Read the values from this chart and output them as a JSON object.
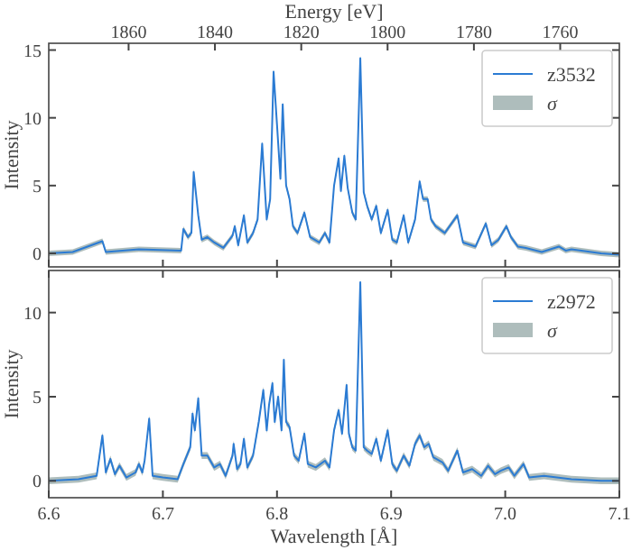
{
  "chart_data": [
    {
      "type": "line",
      "x2label": "Energy [eV]",
      "ylabel": "Intensity",
      "xlim": [
        6.6,
        7.1
      ],
      "xticks": [
        6.6,
        6.7,
        6.8,
        6.9,
        7.0,
        7.1
      ],
      "x2lim": [
        1878.5,
        1746.3
      ],
      "x2ticks": [
        1860,
        1840,
        1820,
        1800,
        1780,
        1760
      ],
      "ylim": [
        -1,
        15.5
      ],
      "yticks": [
        0,
        5,
        10,
        15
      ],
      "tick_labels": "y",
      "legend": "top right",
      "x": [
        6.6,
        6.621,
        6.647,
        6.65,
        6.679,
        6.716,
        6.718,
        6.722,
        6.725,
        6.727,
        6.731,
        6.734,
        6.739,
        6.745,
        6.753,
        6.761,
        6.763,
        6.766,
        6.771,
        6.774,
        6.779,
        6.783,
        6.787,
        6.791,
        6.794,
        6.797,
        6.8,
        6.803,
        6.805,
        6.808,
        6.811,
        6.814,
        6.818,
        6.824,
        6.829,
        6.837,
        6.842,
        6.846,
        6.85,
        6.854,
        6.856,
        6.859,
        6.862,
        6.866,
        6.869,
        6.873,
        6.876,
        6.879,
        6.883,
        6.887,
        6.891,
        6.897,
        6.901,
        6.905,
        6.911,
        6.915,
        6.921,
        6.925,
        6.928,
        6.932,
        6.935,
        6.939,
        6.947,
        6.958,
        6.963,
        6.974,
        6.983,
        6.988,
        6.994,
        7.001,
        7.005,
        7.011,
        7.018,
        7.032,
        7.047,
        7.053,
        7.058,
        7.084,
        7.1
      ],
      "series": [
        {
          "name": "z3532",
          "color": "#2b7bd3",
          "values": [
            0,
            0.1,
            0.9,
            0.1,
            0.3,
            0.2,
            1.8,
            1.2,
            1.5,
            6.0,
            2.8,
            1.0,
            1.2,
            0.8,
            0.4,
            1.3,
            2.0,
            0.6,
            2.8,
            0.8,
            1.5,
            2.5,
            8.1,
            2.5,
            4.0,
            13.4,
            9.5,
            5.5,
            11.0,
            5.0,
            4.0,
            2.0,
            1.5,
            3.0,
            1.2,
            0.8,
            1.5,
            0.8,
            5.0,
            7.0,
            4.6,
            7.2,
            4.8,
            3.0,
            2.5,
            14.4,
            4.5,
            3.5,
            2.5,
            3.5,
            1.5,
            3.2,
            1.0,
            0.8,
            2.8,
            0.8,
            2.5,
            5.3,
            4.0,
            4.0,
            2.5,
            2.0,
            1.5,
            2.8,
            0.8,
            0.5,
            2.2,
            0.6,
            1.0,
            2.0,
            1.2,
            0.5,
            0.4,
            0.1,
            0.5,
            0.2,
            0.3,
            0.0,
            -0.1
          ],
          "lower": [
            -0.2,
            -0.1,
            0.7,
            -0.1,
            0.1,
            0.0,
            1.6,
            1.0,
            1.3,
            5.8,
            2.6,
            0.8,
            1.0,
            0.6,
            0.2,
            1.1,
            1.8,
            0.4,
            2.6,
            0.6,
            1.3,
            2.3,
            7.9,
            2.3,
            3.8,
            13.2,
            9.3,
            5.3,
            10.8,
            4.8,
            3.8,
            1.8,
            1.3,
            2.8,
            1.0,
            0.6,
            1.3,
            0.6,
            4.8,
            6.8,
            4.4,
            7.0,
            4.6,
            2.8,
            2.3,
            14.2,
            4.3,
            3.3,
            2.3,
            3.3,
            1.3,
            3.0,
            0.8,
            0.6,
            2.6,
            0.6,
            2.3,
            5.1,
            3.8,
            3.8,
            2.3,
            1.8,
            1.3,
            2.6,
            0.6,
            0.3,
            2.0,
            0.4,
            0.8,
            1.8,
            1.0,
            0.3,
            0.2,
            -0.1,
            0.3,
            0.0,
            0.1,
            -0.2,
            -0.3
          ],
          "upper": [
            0.2,
            0.3,
            1.1,
            0.3,
            0.5,
            0.4,
            2.0,
            1.4,
            1.7,
            6.2,
            3.0,
            1.2,
            1.4,
            1.0,
            0.6,
            1.5,
            2.2,
            0.8,
            3.0,
            1.0,
            1.7,
            2.7,
            8.3,
            2.7,
            4.2,
            13.6,
            9.7,
            5.7,
            11.2,
            5.2,
            4.2,
            2.2,
            1.7,
            3.2,
            1.4,
            1.0,
            1.7,
            1.0,
            5.2,
            7.2,
            4.8,
            7.4,
            5.0,
            3.2,
            2.7,
            14.6,
            4.7,
            3.7,
            2.7,
            3.7,
            1.7,
            3.4,
            1.2,
            1.0,
            3.0,
            1.0,
            2.7,
            5.5,
            4.2,
            4.2,
            2.7,
            2.2,
            1.7,
            3.0,
            1.0,
            0.7,
            2.4,
            0.8,
            1.2,
            2.2,
            1.4,
            0.7,
            0.6,
            0.3,
            0.7,
            0.4,
            0.5,
            0.2,
            0.1
          ]
        },
        {
          "name": "σ",
          "type": "area",
          "color": "#9aadab",
          "values": [
            null,
            null,
            null,
            null,
            null,
            null,
            null,
            null,
            null,
            null,
            null,
            null,
            null,
            null,
            null,
            null,
            null,
            null,
            null,
            null,
            null,
            null,
            null,
            null,
            null,
            null,
            null,
            null,
            null,
            null,
            null,
            null,
            null,
            null,
            null,
            null,
            null,
            null,
            null,
            null,
            null,
            null,
            null,
            null,
            null,
            null,
            null,
            null,
            null,
            null,
            null,
            null,
            null,
            null,
            null,
            null,
            null,
            null,
            null,
            null,
            null,
            null,
            null,
            null,
            null,
            null,
            null,
            null,
            null,
            null,
            null,
            null,
            null,
            null,
            null,
            null,
            null,
            null,
            null
          ]
        }
      ]
    },
    {
      "type": "line",
      "xlabel": "Wavelength [Å]",
      "ylabel": "Intensity",
      "xlim": [
        6.6,
        7.1
      ],
      "xticks": [
        6.6,
        6.7,
        6.8,
        6.9,
        {
          "value": 7.0,
          "label": "7.0"
        },
        7.1
      ],
      "ylim": [
        -1,
        12.5
      ],
      "yticks": [
        0,
        5,
        10
      ],
      "legend": "top right",
      "x": [
        6.6,
        6.626,
        6.642,
        6.647,
        6.65,
        6.654,
        6.658,
        6.662,
        6.668,
        6.676,
        6.679,
        6.682,
        6.684,
        6.688,
        6.691,
        6.7,
        6.713,
        6.718,
        6.724,
        6.726,
        6.728,
        6.731,
        6.734,
        6.739,
        6.745,
        6.75,
        6.755,
        6.761,
        6.762,
        6.765,
        6.768,
        6.771,
        6.774,
        6.779,
        6.784,
        6.788,
        6.791,
        6.793,
        6.796,
        6.798,
        6.801,
        6.804,
        6.806,
        6.808,
        6.811,
        6.815,
        6.819,
        6.824,
        6.827,
        6.834,
        6.842,
        6.846,
        6.85,
        6.854,
        6.857,
        6.861,
        6.863,
        6.866,
        6.869,
        6.873,
        6.876,
        6.879,
        6.883,
        6.887,
        6.891,
        6.897,
        6.901,
        6.905,
        6.911,
        6.916,
        6.921,
        6.925,
        6.929,
        6.933,
        6.937,
        6.945,
        6.95,
        6.958,
        6.963,
        6.971,
        6.979,
        6.985,
        6.991,
        6.996,
        7.003,
        7.008,
        7.016,
        7.021,
        7.034,
        7.058,
        7.084,
        7.1
      ],
      "series": [
        {
          "name": "z2972",
          "color": "#2b7bd3",
          "values": [
            0,
            0.1,
            0.3,
            2.7,
            0.5,
            1.3,
            0.4,
            0.9,
            0.2,
            0.5,
            1.0,
            0.5,
            1.2,
            3.7,
            0.3,
            0.2,
            0.1,
            1.0,
            2.0,
            4.0,
            3.0,
            4.9,
            1.5,
            1.5,
            0.8,
            1.0,
            0.3,
            1.5,
            2.2,
            0.7,
            1.0,
            2.5,
            0.8,
            1.5,
            3.5,
            5.4,
            3.0,
            4.5,
            5.8,
            3.5,
            5.0,
            3.0,
            7.2,
            3.5,
            3.2,
            1.5,
            1.2,
            2.8,
            1.0,
            0.8,
            1.2,
            0.8,
            3.0,
            4.2,
            2.8,
            5.7,
            2.8,
            2.0,
            1.8,
            11.8,
            2.0,
            1.8,
            1.6,
            2.5,
            1.2,
            3.0,
            1.0,
            0.6,
            1.5,
            0.9,
            2.2,
            2.7,
            2.0,
            2.2,
            1.4,
            1.1,
            0.6,
            1.8,
            0.5,
            0.7,
            0.3,
            0.9,
            0.4,
            0.6,
            0.8,
            0.3,
            1.0,
            0.2,
            0.3,
            0.1,
            0.0,
            0.0
          ],
          "lower": [
            -0.2,
            -0.1,
            0.1,
            2.5,
            0.3,
            1.1,
            0.2,
            0.7,
            0.0,
            0.3,
            0.8,
            0.3,
            1.0,
            3.5,
            0.1,
            0.0,
            -0.1,
            0.8,
            1.8,
            3.8,
            2.8,
            4.7,
            1.3,
            1.3,
            0.6,
            0.8,
            0.1,
            1.3,
            2.0,
            0.5,
            0.8,
            2.3,
            0.6,
            1.3,
            3.3,
            5.2,
            2.8,
            4.3,
            5.6,
            3.3,
            4.8,
            2.8,
            7.0,
            3.3,
            3.0,
            1.3,
            1.0,
            2.6,
            0.8,
            0.6,
            1.0,
            0.6,
            2.8,
            4.0,
            2.6,
            5.5,
            2.6,
            1.8,
            1.6,
            11.6,
            1.8,
            1.6,
            1.4,
            2.3,
            1.0,
            2.8,
            0.8,
            0.4,
            1.3,
            0.7,
            2.0,
            2.5,
            1.8,
            2.0,
            1.2,
            0.9,
            0.4,
            1.6,
            0.3,
            0.5,
            0.1,
            0.7,
            0.2,
            0.4,
            0.6,
            0.1,
            0.8,
            0.0,
            0.1,
            -0.1,
            -0.2,
            -0.2
          ],
          "upper": [
            0.2,
            0.3,
            0.5,
            2.9,
            0.7,
            1.5,
            0.6,
            1.1,
            0.4,
            0.7,
            1.2,
            0.7,
            1.4,
            3.9,
            0.5,
            0.4,
            0.3,
            1.2,
            2.2,
            4.2,
            3.2,
            5.1,
            1.7,
            1.7,
            1.0,
            1.2,
            0.5,
            1.7,
            2.4,
            0.9,
            1.2,
            2.7,
            1.0,
            1.7,
            3.7,
            5.6,
            3.2,
            4.7,
            6.0,
            3.7,
            5.2,
            3.2,
            7.4,
            3.7,
            3.4,
            1.7,
            1.4,
            3.0,
            1.2,
            1.0,
            1.4,
            1.0,
            3.2,
            4.4,
            3.0,
            5.9,
            3.0,
            2.2,
            2.0,
            12.0,
            2.2,
            2.0,
            1.8,
            2.7,
            1.4,
            3.2,
            1.2,
            0.8,
            1.7,
            1.1,
            2.4,
            2.9,
            2.2,
            2.4,
            1.6,
            1.3,
            0.8,
            2.0,
            0.7,
            0.9,
            0.5,
            1.1,
            0.6,
            0.8,
            1.0,
            0.5,
            1.2,
            0.4,
            0.5,
            0.3,
            0.2,
            0.2
          ]
        },
        {
          "name": "σ",
          "type": "area",
          "color": "#9aadab",
          "values": [
            null,
            null,
            null,
            null,
            null,
            null,
            null,
            null,
            null,
            null,
            null,
            null,
            null,
            null,
            null,
            null,
            null,
            null,
            null,
            null,
            null,
            null,
            null,
            null,
            null,
            null,
            null,
            null,
            null,
            null,
            null,
            null,
            null,
            null,
            null,
            null,
            null,
            null,
            null,
            null,
            null,
            null,
            null,
            null,
            null,
            null,
            null,
            null,
            null,
            null,
            null,
            null,
            null,
            null,
            null,
            null,
            null,
            null,
            null,
            null,
            null,
            null,
            null,
            null,
            null,
            null,
            null,
            null,
            null,
            null,
            null,
            null,
            null,
            null,
            null,
            null,
            null,
            null,
            null,
            null,
            null,
            null,
            null,
            null,
            null,
            null,
            null,
            null,
            null,
            null,
            null,
            null
          ]
        }
      ]
    }
  ]
}
